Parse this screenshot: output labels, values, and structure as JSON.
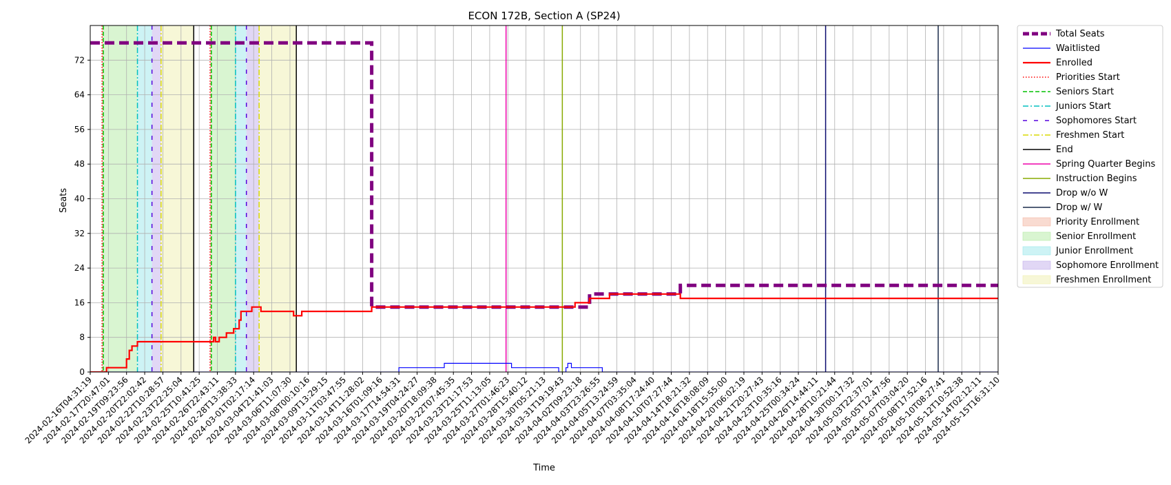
{
  "chart_data": {
    "type": "line",
    "title": "ECON 172B, Section A (SP24)",
    "xlabel": "Time",
    "ylabel": "Seats",
    "ylim": [
      0,
      80
    ],
    "yticks": [
      0,
      8,
      16,
      24,
      32,
      40,
      48,
      56,
      64,
      72
    ],
    "grid": true,
    "legend_position": "outside-right",
    "x_tick_labels": [
      "2024-02-16T04:31:19",
      "2024-02-17T20:47:01",
      "2024-02-19T09:23:56",
      "2024-02-20T22:02:42",
      "2024-02-22T10:28:57",
      "2024-02-23T22:25:04",
      "2024-02-25T10:41:25",
      "2024-02-26T22:43:11",
      "2024-02-28T13:38:33",
      "2024-03-01T02:17:14",
      "2024-03-04T21:41:03",
      "2024-03-06T11:07:30",
      "2024-03-08T00:10:16",
      "2024-03-09T13:29:15",
      "2024-03-11T03:47:55",
      "2024-03-14T11:28:02",
      "2024-03-16T01:09:16",
      "2024-03-17T14:54:31",
      "2024-03-19T04:24:27",
      "2024-03-20T18:09:38",
      "2024-03-22T07:45:35",
      "2024-03-23T21:17:53",
      "2024-03-25T11:13:05",
      "2024-03-27T01:46:23",
      "2024-03-28T15:40:12",
      "2024-03-30T05:21:13",
      "2024-03-31T19:19:43",
      "2024-04-02T09:23:18",
      "2024-04-03T23:26:55",
      "2024-04-05T13:24:59",
      "2024-04-07T03:35:04",
      "2024-04-08T17:24:40",
      "2024-04-10T07:27:44",
      "2024-04-14T18:21:32",
      "2024-04-16T18:08:09",
      "2024-04-18T15:55:00",
      "2024-04-20T06:02:19",
      "2024-04-21T20:27:43",
      "2024-04-23T10:35:16",
      "2024-04-25T00:34:24",
      "2024-04-26T14:44:11",
      "2024-04-28T10:21:44",
      "2024-04-30T00:17:32",
      "2024-05-03T22:37:01",
      "2024-05-05T12:47:56",
      "2024-05-07T03:04:20",
      "2024-05-08T17:52:16",
      "2024-05-10T08:27:41",
      "2024-05-12T10:52:38",
      "2024-05-14T02:12:11",
      "2024-05-15T16:31:10"
    ],
    "series": [
      {
        "name": "Total Seats",
        "color": "#800080",
        "style": "dashed-thick",
        "x": [
          0,
          15.5,
          15.5,
          27.2,
          27.5,
          27.5,
          31.5,
          31.5,
          32.5,
          32.5,
          50
        ],
        "y": [
          76,
          76,
          15,
          15,
          15,
          18,
          18,
          18,
          18,
          20,
          20
        ]
      },
      {
        "name": "Waitlisted",
        "color": "#0000ff",
        "style": "solid-thin",
        "x": [
          0,
          17,
          17,
          19.5,
          19.5,
          23.2,
          23.2,
          25.8,
          25.8,
          26.2,
          26.2,
          26.3,
          26.3,
          26.5,
          26.5,
          28.2,
          28.2,
          50
        ],
        "y": [
          0,
          0,
          1,
          1,
          2,
          2,
          1,
          1,
          0,
          0,
          1,
          1,
          2,
          2,
          1,
          1,
          0,
          0
        ]
      },
      {
        "name": "Enrolled",
        "color": "#ff0000",
        "style": "solid",
        "x": [
          0,
          0.9,
          0.9,
          2.0,
          2.0,
          2.15,
          2.15,
          2.3,
          2.3,
          2.6,
          2.6,
          6.8,
          6.8,
          6.9,
          6.9,
          7.1,
          7.1,
          7.5,
          7.5,
          7.9,
          7.9,
          8.2,
          8.2,
          8.3,
          8.3,
          8.9,
          8.9,
          9.4,
          9.4,
          11.2,
          11.2,
          11.65,
          11.65,
          15.5,
          15.5,
          16.3,
          16.3,
          26.7,
          26.7,
          27.5,
          27.5,
          28.6,
          28.6,
          32.5,
          32.5,
          50
        ],
        "y": [
          0,
          0,
          1,
          1,
          3,
          3,
          5,
          5,
          6,
          6,
          7,
          7,
          8,
          8,
          7,
          7,
          8,
          8,
          9,
          9,
          10,
          10,
          12,
          12,
          14,
          14,
          15,
          15,
          14,
          14,
          13,
          13,
          14,
          14,
          15,
          15,
          15,
          15,
          16,
          16,
          17,
          17,
          18,
          18,
          17,
          17
        ]
      }
    ],
    "vlines": [
      {
        "name": "Priorities Start",
        "color": "#ff0000",
        "style": "dotted",
        "x": [
          0.65,
          6.6
        ]
      },
      {
        "name": "Seniors Start",
        "color": "#00c000",
        "style": "dashed",
        "x": [
          0.72,
          6.67
        ]
      },
      {
        "name": "Juniors Start",
        "color": "#00bfbf",
        "style": "dashdot",
        "x": [
          2.6,
          8.0
        ]
      },
      {
        "name": "Sophomores Start",
        "color": "#5500dd",
        "style": "loosedash",
        "x": [
          3.4,
          8.6
        ]
      },
      {
        "name": "Freshmen Start",
        "color": "#d8d800",
        "style": "dashdot",
        "x": [
          3.9,
          9.3
        ]
      },
      {
        "name": "End",
        "color": "#000000",
        "style": "solid",
        "x": [
          5.7,
          11.35
        ]
      },
      {
        "name": "Spring Quarter Begins",
        "color": "#ee00aa",
        "style": "solid",
        "x": [
          22.9
        ]
      },
      {
        "name": "Instruction Begins",
        "color": "#88aa00",
        "style": "solid",
        "x": [
          26.0
        ]
      },
      {
        "name": "Drop w/o W",
        "color": "#0a0a6e",
        "style": "solid",
        "x": [
          40.5
        ]
      },
      {
        "name": "Drop w/ W",
        "color": "#1a2a4a",
        "style": "solid",
        "x": [
          46.7
        ]
      }
    ],
    "shaded_regions": [
      {
        "name": "Priority Enrollment",
        "color": "#f4b8a4",
        "alpha": 0.5,
        "ranges": [
          [
            0.65,
            0.72
          ],
          [
            6.6,
            6.67
          ]
        ]
      },
      {
        "name": "Senior Enrollment",
        "color": "#b4eca4",
        "alpha": 0.5,
        "ranges": [
          [
            0.72,
            2.6
          ],
          [
            6.67,
            8.0
          ]
        ]
      },
      {
        "name": "Junior Enrollment",
        "color": "#9ce8ec",
        "alpha": 0.5,
        "ranges": [
          [
            2.6,
            3.4
          ],
          [
            8.0,
            8.6
          ]
        ]
      },
      {
        "name": "Sophomore Enrollment",
        "color": "#c4b0ec",
        "alpha": 0.5,
        "ranges": [
          [
            3.4,
            3.9
          ],
          [
            8.6,
            9.3
          ]
        ]
      },
      {
        "name": "Freshmen Enrollment",
        "color": "#f0f0b0",
        "alpha": 0.5,
        "ranges": [
          [
            3.9,
            5.7
          ],
          [
            9.3,
            11.35
          ]
        ]
      }
    ]
  }
}
